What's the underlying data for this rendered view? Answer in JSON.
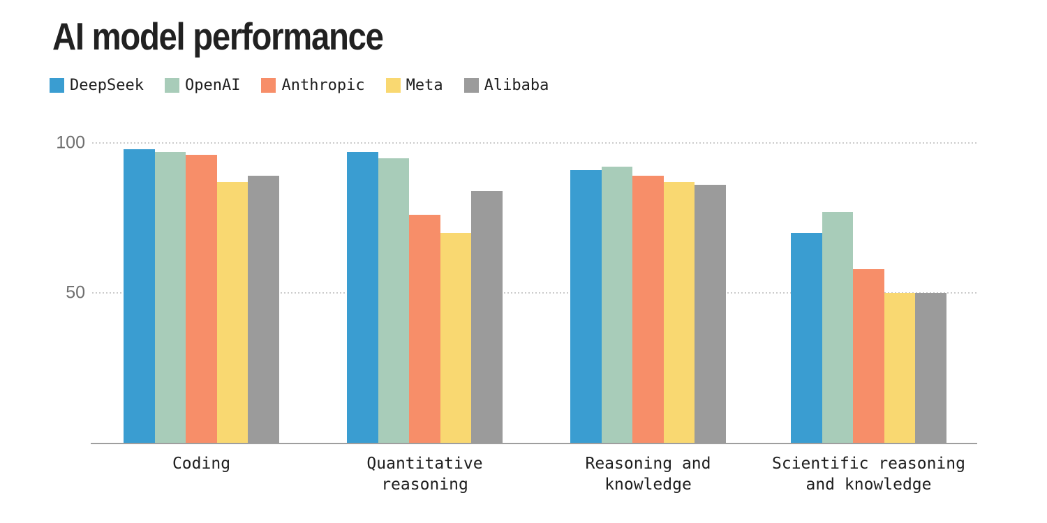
{
  "chart_data": {
    "type": "bar",
    "title": "AI model performance",
    "categories": [
      "Coding",
      "Quantitative reasoning",
      "Reasoning and knowledge",
      "Scientific reasoning and knowledge"
    ],
    "category_label_lines": [
      [
        "Coding"
      ],
      [
        "Quantitative",
        "reasoning"
      ],
      [
        "Reasoning and",
        "knowledge"
      ],
      [
        "Scientific reasoning",
        "and knowledge"
      ]
    ],
    "series": [
      {
        "name": "DeepSeek",
        "color": "#3A9DD1",
        "values": [
          98,
          97,
          91,
          70
        ]
      },
      {
        "name": "OpenAI",
        "color": "#A8CCB9",
        "values": [
          97,
          95,
          92,
          77
        ]
      },
      {
        "name": "Anthropic",
        "color": "#F78E69",
        "values": [
          96,
          76,
          89,
          58
        ]
      },
      {
        "name": "Meta",
        "color": "#F9D871",
        "values": [
          87,
          70,
          87,
          50
        ]
      },
      {
        "name": "Alibaba",
        "color": "#9B9B9B",
        "values": [
          89,
          84,
          86,
          50
        ]
      }
    ],
    "xlabel": "",
    "ylabel": "",
    "ylim": [
      0,
      100
    ],
    "yticks": [
      100,
      50
    ],
    "grid": "horizontal-dotted",
    "legend_position": "top-left",
    "colors": {
      "title": "#212121",
      "text": "#1E1E1E",
      "tick_label": "#6E6E6E",
      "gridline": "#CBCBCB",
      "axis": "#9E9E9E",
      "background": "#FFFFFF"
    }
  }
}
